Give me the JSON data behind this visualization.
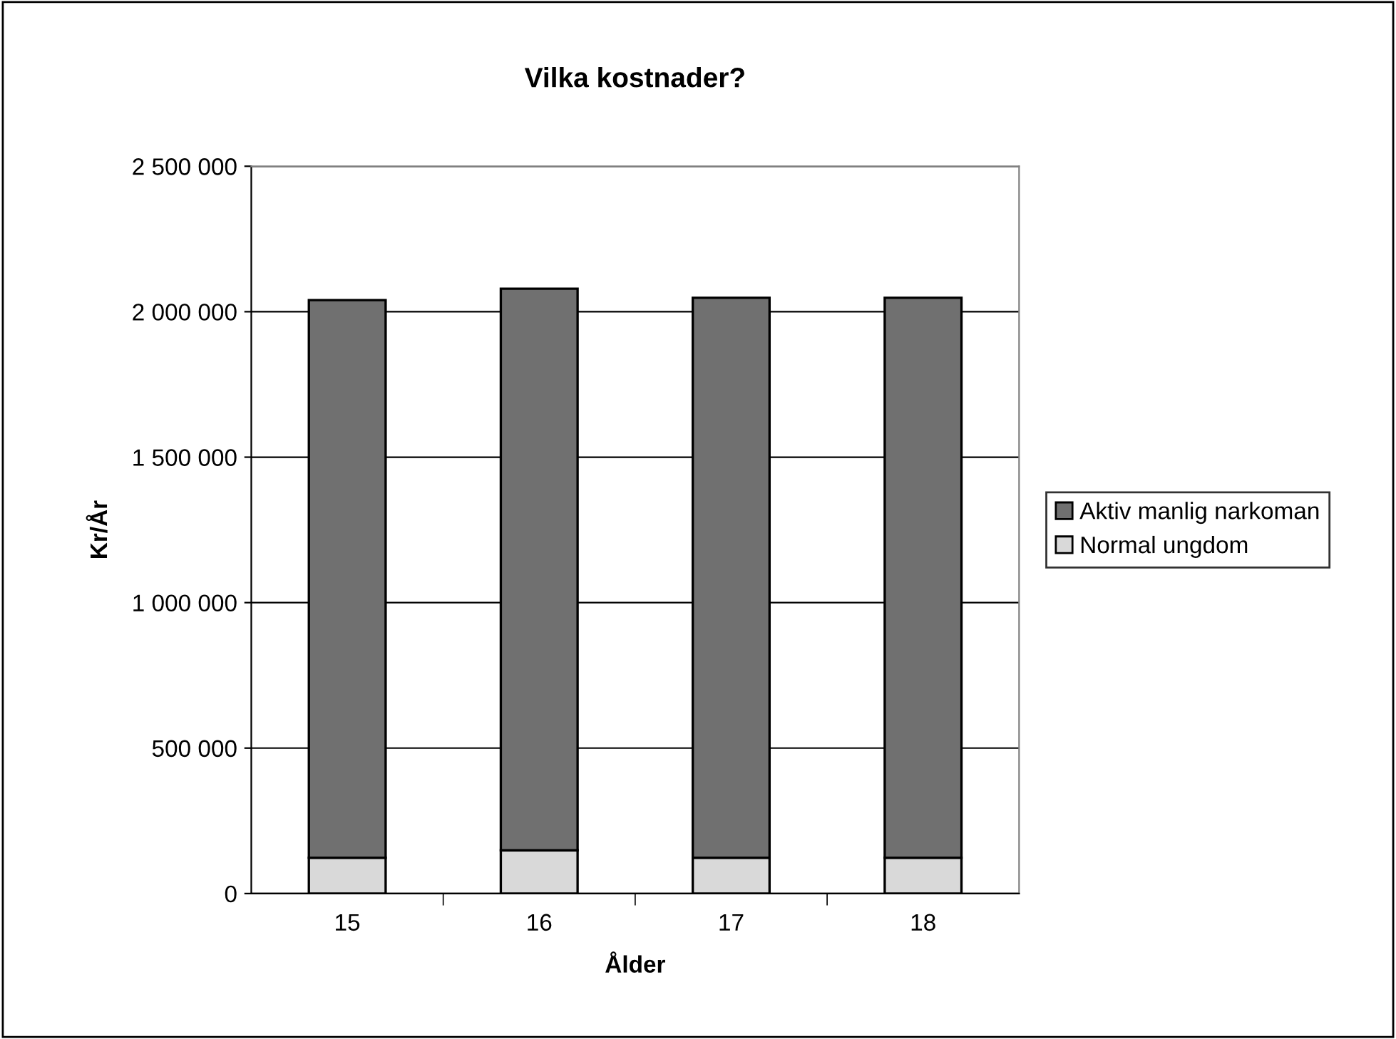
{
  "chart_data": {
    "type": "bar",
    "title": "Vilka kostnader?",
    "xlabel": "Ålder",
    "ylabel": "Kr/År",
    "categories": [
      "15",
      "16",
      "17",
      "18"
    ],
    "stacked": true,
    "series": [
      {
        "name": "Normal ungdom",
        "color": "#d9d9d9",
        "values": [
          123000,
          149000,
          123000,
          123000
        ]
      },
      {
        "name": "Aktiv manlig narkoman",
        "color": "#707070",
        "values": [
          1917000,
          1930000,
          1925000,
          1925000
        ]
      }
    ],
    "ylim": [
      0,
      2500000
    ],
    "yticks": [
      {
        "value": 0,
        "label": "0"
      },
      {
        "value": 500000,
        "label": "500 000"
      },
      {
        "value": 1000000,
        "label": "1 000 000"
      },
      {
        "value": 1500000,
        "label": "1 500 000"
      },
      {
        "value": 2000000,
        "label": "2 000 000"
      },
      {
        "value": 2500000,
        "label": "2 500 000"
      }
    ],
    "grid": "y",
    "legend": "right"
  }
}
